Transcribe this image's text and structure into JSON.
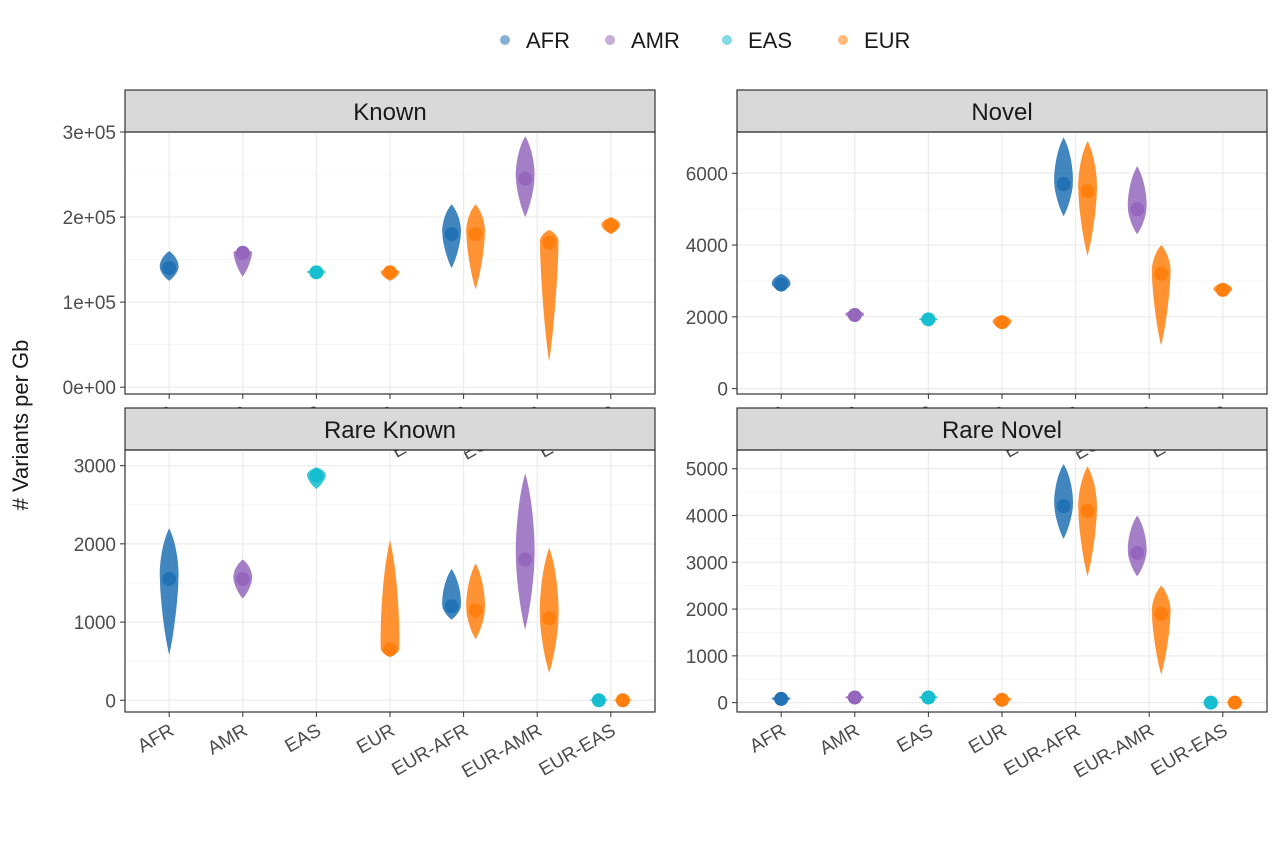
{
  "legend": [
    {
      "label": "AFR",
      "color": "#2171b5"
    },
    {
      "label": "AMR",
      "color": "#9467bd"
    },
    {
      "label": "EAS",
      "color": "#17becf"
    },
    {
      "label": "EUR",
      "color": "#ff7f0e"
    }
  ],
  "ylabel": "# Variants per Gb",
  "chart_data": [
    {
      "type": "scatter",
      "title": "Known",
      "categories": [
        "AFR",
        "AMR",
        "EAS",
        "EUR",
        "EUR-AFR",
        "EUR-AMR",
        "EUR-EAS"
      ],
      "ylim": [
        -8000,
        300000
      ],
      "yticks": [
        0,
        100000,
        200000,
        300000
      ],
      "yticklabels": [
        "0e+00",
        "1e+05",
        "2e+05",
        "3e+05"
      ],
      "grid": true,
      "series": [
        {
          "name": "AFR",
          "color": "#2171b5",
          "points": [
            [
              "AFR",
              125000,
              160000,
              140000
            ],
            [
              "EUR-AFR",
              140000,
              215000,
              180000
            ]
          ]
        },
        {
          "name": "AMR",
          "color": "#9467bd",
          "points": [
            [
              "AMR",
              130000,
              162000,
              158000
            ],
            [
              "EUR-AMR",
              200000,
              295000,
              245000
            ]
          ]
        },
        {
          "name": "EAS",
          "color": "#17becf",
          "points": [
            [
              "EAS",
              132000,
              139000,
              135000
            ]
          ]
        },
        {
          "name": "EUR",
          "color": "#ff7f0e",
          "points": [
            [
              "EUR",
              125000,
              140000,
              135000
            ],
            [
              "EUR-AFR",
              115000,
              215000,
              180000
            ],
            [
              "EUR-AMR",
              30000,
              185000,
              170000
            ],
            [
              "EUR-EAS",
              180000,
              200000,
              190000
            ]
          ]
        }
      ]
    },
    {
      "type": "scatter",
      "title": "Novel",
      "categories": [
        "AFR",
        "AMR",
        "EAS",
        "EUR",
        "EUR-AFR",
        "EUR-AMR",
        "EUR-EAS"
      ],
      "ylim": [
        -150,
        7150
      ],
      "yticks": [
        0,
        2000,
        4000,
        6000
      ],
      "yticklabels": [
        "0",
        "2000",
        "4000",
        "6000"
      ],
      "grid": true,
      "series": [
        {
          "name": "AFR",
          "color": "#2171b5",
          "points": [
            [
              "AFR",
              2700,
              3200,
              2900
            ],
            [
              "EUR-AFR",
              4800,
              7000,
              5700
            ]
          ]
        },
        {
          "name": "AMR",
          "color": "#9467bd",
          "points": [
            [
              "AMR",
              1950,
              2200,
              2050
            ],
            [
              "EUR-AMR",
              4300,
              6200,
              5000
            ]
          ]
        },
        {
          "name": "EAS",
          "color": "#17becf",
          "points": [
            [
              "EAS",
              1850,
              2000,
              1930
            ]
          ]
        },
        {
          "name": "EUR",
          "color": "#ff7f0e",
          "points": [
            [
              "EUR",
              1650,
              2050,
              1850
            ],
            [
              "EUR-AFR",
              3700,
              6900,
              5500
            ],
            [
              "EUR-AMR",
              1200,
              4000,
              3200
            ],
            [
              "EUR-EAS",
              2600,
              2950,
              2750
            ]
          ]
        }
      ]
    },
    {
      "type": "scatter",
      "title": "Rare Known",
      "categories": [
        "AFR",
        "AMR",
        "EAS",
        "EUR",
        "EUR-AFR",
        "EUR-AMR",
        "EUR-EAS"
      ],
      "ylim": [
        -150,
        3200
      ],
      "yticks": [
        0,
        1000,
        2000,
        3000
      ],
      "yticklabels": [
        "0",
        "1000",
        "2000",
        "3000"
      ],
      "grid": true,
      "series": [
        {
          "name": "AFR",
          "color": "#2171b5",
          "points": [
            [
              "AFR",
              580,
              2200,
              1550
            ],
            [
              "EUR-AFR",
              1030,
              1680,
              1200
            ]
          ]
        },
        {
          "name": "AMR",
          "color": "#9467bd",
          "points": [
            [
              "AMR",
              1300,
              1800,
              1550
            ],
            [
              "EUR-AMR",
              900,
              2900,
              1800
            ]
          ]
        },
        {
          "name": "EAS",
          "color": "#17becf",
          "points": [
            [
              "EAS",
              2700,
              2980,
              2870
            ],
            [
              "EUR-EAS",
              -20,
              20,
              0
            ]
          ]
        },
        {
          "name": "EUR",
          "color": "#ff7f0e",
          "points": [
            [
              "EUR",
              550,
              2050,
              650
            ],
            [
              "EUR-AFR",
              780,
              1750,
              1150
            ],
            [
              "EUR-AMR",
              350,
              1950,
              1050
            ],
            [
              "EUR-EAS",
              -20,
              20,
              0
            ]
          ]
        }
      ]
    },
    {
      "type": "scatter",
      "title": "Rare Novel",
      "categories": [
        "AFR",
        "AMR",
        "EAS",
        "EUR",
        "EUR-AFR",
        "EUR-AMR",
        "EUR-EAS"
      ],
      "ylim": [
        -200,
        5400
      ],
      "yticks": [
        0,
        1000,
        2000,
        3000,
        4000,
        5000
      ],
      "yticklabels": [
        "0",
        "1000",
        "2000",
        "3000",
        "4000",
        "5000"
      ],
      "grid": true,
      "series": [
        {
          "name": "AFR",
          "color": "#2171b5",
          "points": [
            [
              "AFR",
              0,
              150,
              80
            ],
            [
              "EUR-AFR",
              3500,
              5100,
              4200
            ]
          ]
        },
        {
          "name": "AMR",
          "color": "#9467bd",
          "points": [
            [
              "AMR",
              40,
              170,
              110
            ],
            [
              "EUR-AMR",
              2700,
              4000,
              3200
            ]
          ]
        },
        {
          "name": "EAS",
          "color": "#17becf",
          "points": [
            [
              "EAS",
              40,
              170,
              110
            ],
            [
              "EUR-EAS",
              -20,
              20,
              0
            ]
          ]
        },
        {
          "name": "EUR",
          "color": "#ff7f0e",
          "points": [
            [
              "EUR",
              0,
              150,
              60
            ],
            [
              "EUR-AFR",
              2700,
              5050,
              4100
            ],
            [
              "EUR-AMR",
              600,
              2500,
              1900
            ],
            [
              "EUR-EAS",
              -20,
              20,
              0
            ]
          ]
        }
      ]
    }
  ]
}
